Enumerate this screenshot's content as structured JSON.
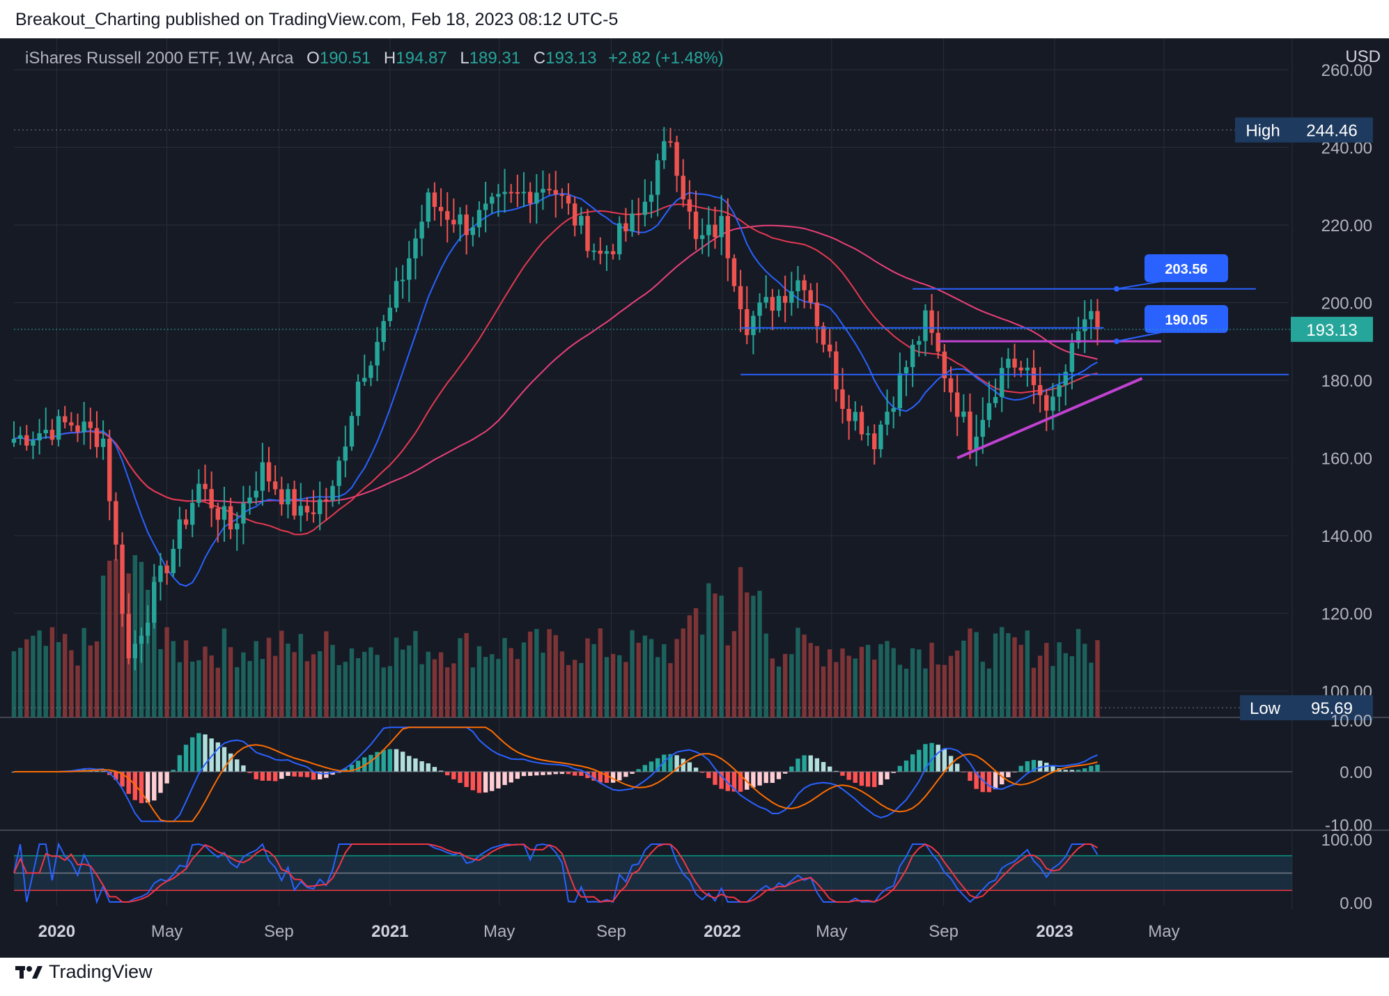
{
  "header": {
    "publisher_line": "Breakout_Charting published on TradingView.com, Feb 18, 2023 08:12 UTC-5"
  },
  "legend": {
    "symbol": "iShares Russell 2000 ETF, 1W, Arca",
    "o_label": "O",
    "o": "190.51",
    "h_label": "H",
    "h": "194.87",
    "l_label": "L",
    "l": "189.31",
    "c_label": "C",
    "c": "193.13",
    "change": "+2.82 (+1.48%)"
  },
  "footer": {
    "brand": "TradingView"
  },
  "colors": {
    "bg": "#161a25",
    "up": "#26a69a",
    "down": "#ef5350",
    "grid": "#2a2e39",
    "text": "#b2b5be",
    "ma_fast": "#2962ff",
    "ma_mid": "#e53950",
    "ma_slow": "#ec407a",
    "trend": "#c042d0",
    "label_blue": "#2962ff",
    "last_price": "#26a69a",
    "macd": "#2962ff",
    "signal": "#ff6d00",
    "stoch_k": "#2962ff",
    "stoch_d": "#f23645"
  },
  "chart_data": {
    "type": "candlestick",
    "currency": "USD",
    "price_axis": {
      "min": 95,
      "max": 260,
      "ticks": [
        "260.00",
        "240.00",
        "220.00",
        "200.00",
        "180.00",
        "160.00",
        "140.00",
        "120.00",
        "100.00"
      ]
    },
    "x_labels": [
      "2020",
      "May",
      "Sep",
      "2021",
      "May",
      "Sep",
      "2022",
      "May",
      "Sep",
      "2023",
      "May"
    ],
    "x_label_dates": [
      "2020-01-01",
      "2020-05-01",
      "2020-09-01",
      "2021-01-01",
      "2021-05-01",
      "2021-09-01",
      "2022-01-01",
      "2022-05-01",
      "2022-09-01",
      "2023-01-01",
      "2023-05-01"
    ],
    "x_range": [
      "2019-11-15",
      "2023-09-15"
    ],
    "high_marker": {
      "label": "High",
      "value": "244.46"
    },
    "low_marker": {
      "label": "Low",
      "value": "95.69"
    },
    "last_price": "193.13",
    "callouts": [
      "203.56",
      "190.05"
    ],
    "key_points": [
      {
        "date": "2019-11-15",
        "close": 165
      },
      {
        "date": "2020-01-17",
        "close": 169
      },
      {
        "date": "2020-02-21",
        "close": 165
      },
      {
        "date": "2020-03-20",
        "close": 108
      },
      {
        "date": "2020-04-17",
        "close": 125
      },
      {
        "date": "2020-06-05",
        "close": 153
      },
      {
        "date": "2020-07-10",
        "close": 142
      },
      {
        "date": "2020-08-14",
        "close": 157
      },
      {
        "date": "2020-09-25",
        "close": 145
      },
      {
        "date": "2020-10-30",
        "close": 151
      },
      {
        "date": "2020-11-27",
        "close": 180
      },
      {
        "date": "2020-12-31",
        "close": 197
      },
      {
        "date": "2021-02-12",
        "close": 226
      },
      {
        "date": "2021-03-26",
        "close": 220
      },
      {
        "date": "2021-05-07",
        "close": 226
      },
      {
        "date": "2021-06-25",
        "close": 231
      },
      {
        "date": "2021-08-20",
        "close": 212
      },
      {
        "date": "2021-10-01",
        "close": 222
      },
      {
        "date": "2021-11-05",
        "close": 243
      },
      {
        "date": "2021-12-03",
        "close": 215
      },
      {
        "date": "2021-12-31",
        "close": 220
      },
      {
        "date": "2022-01-28",
        "close": 195
      },
      {
        "date": "2022-03-31",
        "close": 207
      },
      {
        "date": "2022-05-13",
        "close": 175
      },
      {
        "date": "2022-06-17",
        "close": 165
      },
      {
        "date": "2022-08-12",
        "close": 195
      },
      {
        "date": "2022-09-30",
        "close": 165
      },
      {
        "date": "2022-11-11",
        "close": 186
      },
      {
        "date": "2022-12-30",
        "close": 173
      },
      {
        "date": "2023-02-03",
        "close": 196
      },
      {
        "date": "2023-02-17",
        "close": 193.13
      }
    ],
    "indicators": {
      "macd_ticks": [
        "10.00",
        "0.00",
        "-10.00"
      ],
      "stoch_ticks": [
        "100.00",
        "0.00"
      ]
    }
  }
}
